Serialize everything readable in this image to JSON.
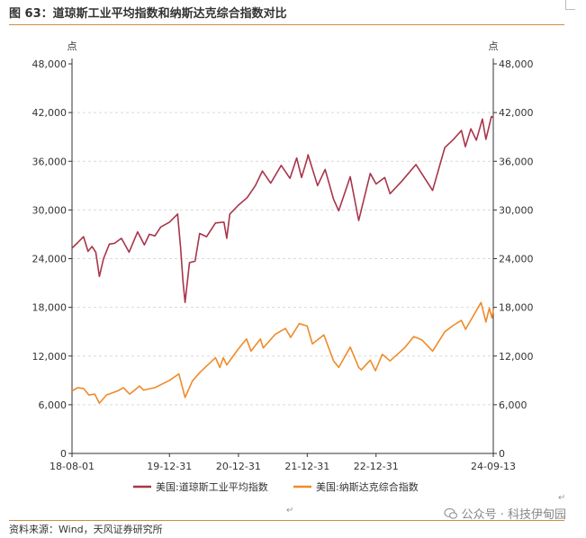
{
  "title": "图 63：道琼斯工业平均指数和纳斯达克综合指数对比",
  "source": "资料来源：Wind，天风证券研究所",
  "watermark": "公众号 · 科技伊甸园",
  "para_mark": "↵",
  "colors": {
    "dow": "#a8354a",
    "nasdaq": "#ee8b2a",
    "accent": "#c9913a",
    "grid": "#d9d9d9"
  },
  "chart_data": {
    "type": "line",
    "unit_left": "点",
    "unit_right": "点",
    "ylim": [
      0,
      48000
    ],
    "y_ticks": [
      "0",
      "6,000",
      "12,000",
      "18,000",
      "24,000",
      "30,000",
      "36,000",
      "42,000",
      "48,000"
    ],
    "x_range": [
      "2018-08-01",
      "2024-09-13"
    ],
    "x_ticks": [
      {
        "date": "2018-08-01",
        "label": "18-08-01"
      },
      {
        "date": "2019-12-31",
        "label": "19-12-31"
      },
      {
        "date": "2020-12-31",
        "label": "20-12-31"
      },
      {
        "date": "2021-12-31",
        "label": "21-12-31"
      },
      {
        "date": "2022-12-31",
        "label": "22-12-31"
      },
      {
        "date": "2024-09-13",
        "label": "24-09-13"
      }
    ],
    "grid": "horizontal dashed",
    "legend_position": "bottom",
    "series": [
      {
        "name": "美国:道琼斯工业平均指数",
        "color": "#a8354a",
        "points": [
          [
            "2018-08-01",
            25300
          ],
          [
            "2018-09-01",
            26000
          ],
          [
            "2018-10-01",
            26700
          ],
          [
            "2018-10-25",
            24900
          ],
          [
            "2018-11-15",
            25500
          ],
          [
            "2018-12-05",
            24800
          ],
          [
            "2018-12-24",
            21800
          ],
          [
            "2019-01-15",
            24000
          ],
          [
            "2019-02-15",
            25800
          ],
          [
            "2019-03-15",
            25900
          ],
          [
            "2019-04-20",
            26500
          ],
          [
            "2019-05-31",
            24800
          ],
          [
            "2019-07-15",
            27300
          ],
          [
            "2019-08-20",
            25700
          ],
          [
            "2019-09-15",
            27000
          ],
          [
            "2019-10-15",
            26800
          ],
          [
            "2019-11-15",
            27900
          ],
          [
            "2019-12-31",
            28500
          ],
          [
            "2020-02-12",
            29500
          ],
          [
            "2020-02-28",
            25400
          ],
          [
            "2020-03-12",
            21200
          ],
          [
            "2020-03-23",
            18600
          ],
          [
            "2020-04-15",
            23500
          ],
          [
            "2020-05-15",
            23700
          ],
          [
            "2020-06-08",
            27100
          ],
          [
            "2020-07-15",
            26700
          ],
          [
            "2020-08-31",
            28400
          ],
          [
            "2020-10-15",
            28500
          ],
          [
            "2020-10-30",
            26500
          ],
          [
            "2020-11-15",
            29500
          ],
          [
            "2020-12-31",
            30600
          ],
          [
            "2021-02-15",
            31500
          ],
          [
            "2021-03-31",
            33000
          ],
          [
            "2021-05-07",
            34800
          ],
          [
            "2021-06-20",
            33300
          ],
          [
            "2021-08-15",
            35500
          ],
          [
            "2021-09-30",
            33900
          ],
          [
            "2021-11-05",
            36400
          ],
          [
            "2021-12-01",
            34000
          ],
          [
            "2021-12-31",
            36300
          ],
          [
            "2022-01-04",
            36800
          ],
          [
            "2022-02-24",
            33000
          ],
          [
            "2022-04-05",
            35000
          ],
          [
            "2022-05-20",
            31300
          ],
          [
            "2022-06-16",
            29900
          ],
          [
            "2022-08-16",
            34100
          ],
          [
            "2022-09-30",
            28700
          ],
          [
            "2022-11-30",
            34500
          ],
          [
            "2022-12-31",
            33200
          ],
          [
            "2023-02-15",
            34000
          ],
          [
            "2023-03-15",
            32000
          ],
          [
            "2023-05-15",
            33500
          ],
          [
            "2023-07-31",
            35600
          ],
          [
            "2023-10-27",
            32400
          ],
          [
            "2023-12-31",
            37700
          ],
          [
            "2024-02-15",
            38700
          ],
          [
            "2024-03-28",
            39800
          ],
          [
            "2024-04-18",
            37800
          ],
          [
            "2024-05-17",
            40000
          ],
          [
            "2024-06-15",
            38600
          ],
          [
            "2024-07-17",
            41200
          ],
          [
            "2024-08-05",
            38700
          ],
          [
            "2024-09-03",
            41500
          ],
          [
            "2024-09-13",
            41400
          ]
        ]
      },
      {
        "name": "美国:纳斯达克综合指数",
        "color": "#ee8b2a",
        "points": [
          [
            "2018-08-01",
            7700
          ],
          [
            "2018-08-31",
            8100
          ],
          [
            "2018-10-01",
            8000
          ],
          [
            "2018-10-30",
            7200
          ],
          [
            "2018-11-30",
            7300
          ],
          [
            "2018-12-24",
            6200
          ],
          [
            "2019-01-31",
            7200
          ],
          [
            "2019-03-31",
            7700
          ],
          [
            "2019-04-30",
            8100
          ],
          [
            "2019-06-03",
            7300
          ],
          [
            "2019-07-25",
            8300
          ],
          [
            "2019-08-15",
            7800
          ],
          [
            "2019-10-15",
            8100
          ],
          [
            "2019-12-31",
            9000
          ],
          [
            "2020-02-19",
            9800
          ],
          [
            "2020-03-23",
            6900
          ],
          [
            "2020-04-30",
            8900
          ],
          [
            "2020-06-10",
            10000
          ],
          [
            "2020-08-31",
            11800
          ],
          [
            "2020-09-23",
            10600
          ],
          [
            "2020-10-12",
            11800
          ],
          [
            "2020-10-30",
            10900
          ],
          [
            "2020-12-31",
            12900
          ],
          [
            "2021-02-12",
            14100
          ],
          [
            "2021-03-08",
            12600
          ],
          [
            "2021-04-26",
            14100
          ],
          [
            "2021-05-12",
            13000
          ],
          [
            "2021-07-15",
            14700
          ],
          [
            "2021-09-07",
            15400
          ],
          [
            "2021-10-04",
            14300
          ],
          [
            "2021-11-19",
            16000
          ],
          [
            "2021-12-31",
            15700
          ],
          [
            "2022-01-27",
            13500
          ],
          [
            "2022-03-29",
            14600
          ],
          [
            "2022-05-20",
            11400
          ],
          [
            "2022-06-16",
            10600
          ],
          [
            "2022-08-16",
            13100
          ],
          [
            "2022-09-30",
            10600
          ],
          [
            "2022-10-14",
            10300
          ],
          [
            "2022-11-30",
            11500
          ],
          [
            "2022-12-28",
            10200
          ],
          [
            "2023-02-02",
            12200
          ],
          [
            "2023-03-15",
            11400
          ],
          [
            "2023-05-31",
            13000
          ],
          [
            "2023-07-19",
            14400
          ],
          [
            "2023-08-31",
            14000
          ],
          [
            "2023-10-27",
            12600
          ],
          [
            "2023-12-31",
            15000
          ],
          [
            "2024-02-15",
            15800
          ],
          [
            "2024-03-28",
            16400
          ],
          [
            "2024-04-19",
            15300
          ],
          [
            "2024-06-15",
            17600
          ],
          [
            "2024-07-10",
            18600
          ],
          [
            "2024-08-05",
            16200
          ],
          [
            "2024-08-23",
            17900
          ],
          [
            "2024-09-06",
            16700
          ],
          [
            "2024-09-13",
            17700
          ]
        ]
      }
    ]
  }
}
